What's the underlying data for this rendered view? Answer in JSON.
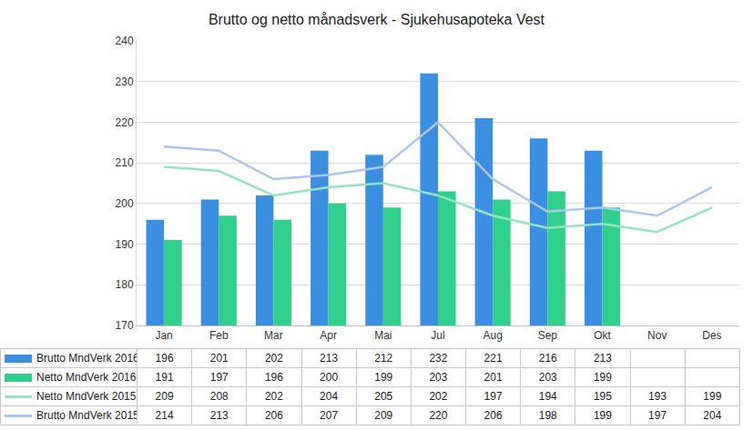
{
  "chart_data": {
    "type": "bar",
    "title": "Brutto og netto månadsverk - Sjukehusapoteka Vest",
    "categories": [
      "Jan",
      "Feb",
      "Mar",
      "Apr",
      "Mai",
      "Jul",
      "Aug",
      "Sep",
      "Okt",
      "Nov",
      "Des"
    ],
    "series": [
      {
        "name": "Brutto MndVerk 2016",
        "type": "bar",
        "color": "#3a8fe3",
        "values": [
          196,
          201,
          202,
          213,
          212,
          232,
          221,
          216,
          213,
          null,
          null
        ]
      },
      {
        "name": "Netto MndVerk 2016",
        "type": "bar",
        "color": "#2fd08c",
        "values": [
          191,
          197,
          196,
          200,
          199,
          203,
          201,
          203,
          199,
          null,
          null
        ]
      },
      {
        "name": "Netto MndVerk 2015",
        "type": "line",
        "color": "#93e4c2",
        "values": [
          209,
          208,
          202,
          204,
          205,
          202,
          197,
          194,
          195,
          193,
          199
        ]
      },
      {
        "name": "Brutto MndVerk 2015",
        "type": "line",
        "color": "#a8c8f0",
        "values": [
          214,
          213,
          206,
          207,
          209,
          220,
          206,
          198,
          199,
          197,
          204
        ]
      }
    ],
    "ylim": [
      170,
      240
    ],
    "yticks": [
      170,
      180,
      190,
      200,
      210,
      220,
      230,
      240
    ],
    "grid": true
  }
}
